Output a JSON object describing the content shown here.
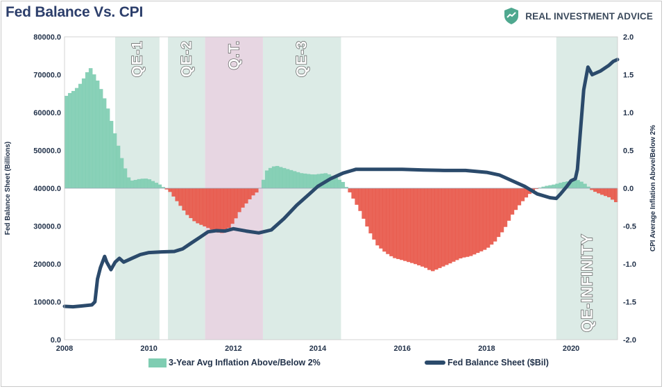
{
  "title": "Fed Balance Vs. CPI",
  "brand": {
    "name": "REAL INVESTMENT ADVICE",
    "logo_icon": "shield-logo-icon",
    "logo_color": "#4fa88f"
  },
  "colors": {
    "positive_area": "#7fcdb2",
    "negative_area": "#e8584a",
    "line": "#2b4a6b",
    "qe_band": "#dcebe6",
    "qt_band": "#e7d6e2"
  },
  "legend": {
    "area_label": "3-Year Avg Inflation Above/Below 2%",
    "line_label": "Fed Balance Sheet ($Bil)"
  },
  "chart_data": {
    "type": "area",
    "x_range": [
      2008,
      2021.1
    ],
    "x_ticks": [
      "2008",
      "2010",
      "2012",
      "2014",
      "2016",
      "2018",
      "2020"
    ],
    "y_left": {
      "label": "Fed Balance Sheet (Billions)",
      "range": [
        0,
        80000
      ],
      "ticks": [
        "0.0",
        "10000.0",
        "20000.0",
        "30000.0",
        "40000.0",
        "50000.0",
        "60000.0",
        "70000.0",
        "80000.0"
      ]
    },
    "y_right": {
      "label": "CPI Average Inflation Above/Below 2%",
      "range": [
        -2.0,
        2.0
      ],
      "ticks": [
        "-2.0",
        "-1.5",
        "-1.0",
        "-0.5",
        "0.0",
        "0.5",
        "1.0",
        "1.5",
        "2.0"
      ]
    },
    "bands": [
      {
        "label": "QE-1",
        "start": 2009.2,
        "end": 2010.25,
        "kind": "qe"
      },
      {
        "label": "QE-2",
        "start": 2010.45,
        "end": 2011.33,
        "kind": "qe"
      },
      {
        "label": "Q.T.",
        "start": 2011.33,
        "end": 2012.7,
        "kind": "qt"
      },
      {
        "label": "QE-3",
        "start": 2012.7,
        "end": 2014.55,
        "kind": "qe"
      },
      {
        "label": "QE-INFINITY",
        "start": 2019.65,
        "end": 2021.1,
        "kind": "qe"
      }
    ],
    "series": [
      {
        "name": "3-Year Avg Inflation Above/Below 2%",
        "axis": "right",
        "style": "stepped-area",
        "x": [
          2008.0,
          2008.1,
          2008.25,
          2008.4,
          2008.5,
          2008.6,
          2008.7,
          2008.8,
          2008.9,
          2009.0,
          2009.1,
          2009.2,
          2009.35,
          2009.5,
          2009.6,
          2009.75,
          2009.9,
          2010.0,
          2010.25,
          2010.5,
          2010.7,
          2010.9,
          2011.1,
          2011.3,
          2011.5,
          2011.7,
          2011.85,
          2012.0,
          2012.15,
          2012.3,
          2012.45,
          2012.6,
          2012.7,
          2012.8,
          2013.0,
          2013.3,
          2013.6,
          2013.9,
          2014.2,
          2014.4,
          2014.6,
          2014.75,
          2015.0,
          2015.2,
          2015.4,
          2015.6,
          2015.8,
          2016.0,
          2016.3,
          2016.55,
          2016.7,
          2016.9,
          2017.1,
          2017.4,
          2017.6,
          2017.8,
          2018.0,
          2018.2,
          2018.4,
          2018.6,
          2018.8,
          2019.0,
          2019.2,
          2019.4,
          2019.6,
          2019.8,
          2020.0,
          2020.1,
          2020.2,
          2020.35,
          2020.5,
          2020.7,
          2020.9,
          2021.1
        ],
        "y": [
          1.2,
          1.25,
          1.3,
          1.4,
          1.5,
          1.6,
          1.5,
          1.4,
          1.25,
          1.1,
          0.9,
          0.7,
          0.4,
          0.15,
          0.1,
          0.12,
          0.13,
          0.12,
          0.05,
          -0.05,
          -0.2,
          -0.35,
          -0.45,
          -0.5,
          -0.55,
          -0.6,
          -0.55,
          -0.45,
          -0.3,
          -0.2,
          -0.1,
          -0.03,
          0.1,
          0.25,
          0.3,
          0.25,
          0.2,
          0.18,
          0.2,
          0.15,
          0.08,
          -0.05,
          -0.3,
          -0.55,
          -0.75,
          -0.85,
          -0.92,
          -0.95,
          -1.0,
          -1.05,
          -1.1,
          -1.05,
          -1.0,
          -0.92,
          -0.9,
          -0.85,
          -0.8,
          -0.7,
          -0.55,
          -0.35,
          -0.2,
          -0.08,
          0.0,
          0.03,
          0.05,
          0.08,
          0.1,
          0.12,
          0.1,
          0.05,
          -0.03,
          -0.08,
          -0.12,
          -0.2
        ]
      },
      {
        "name": "Fed Balance Sheet ($Bil)",
        "axis": "left",
        "style": "line",
        "x": [
          2008.0,
          2008.2,
          2008.4,
          2008.65,
          2008.72,
          2008.78,
          2008.85,
          2008.95,
          2009.0,
          2009.1,
          2009.2,
          2009.3,
          2009.4,
          2009.6,
          2009.8,
          2010.0,
          2010.3,
          2010.6,
          2010.8,
          2011.0,
          2011.2,
          2011.4,
          2011.6,
          2011.8,
          2012.0,
          2012.3,
          2012.6,
          2012.9,
          2013.2,
          2013.5,
          2013.8,
          2014.0,
          2014.3,
          2014.6,
          2014.9,
          2015.0,
          2015.5,
          2016.0,
          2016.5,
          2017.0,
          2017.5,
          2018.0,
          2018.3,
          2018.6,
          2018.9,
          2019.2,
          2019.5,
          2019.65,
          2019.75,
          2019.9,
          2020.0,
          2020.1,
          2020.15,
          2020.2,
          2020.3,
          2020.4,
          2020.5,
          2020.7,
          2020.9,
          2021.0,
          2021.1
        ],
        "y": [
          8800,
          8700,
          8900,
          9200,
          10000,
          16000,
          19000,
          22000,
          20500,
          18500,
          20500,
          21500,
          20500,
          21500,
          22500,
          23000,
          23200,
          23300,
          24000,
          25500,
          27000,
          28500,
          28800,
          28700,
          29300,
          28700,
          28200,
          29000,
          32000,
          35500,
          38500,
          40500,
          42500,
          44000,
          45000,
          45000,
          45000,
          45000,
          44800,
          44700,
          44700,
          44200,
          43500,
          42000,
          40500,
          38500,
          37500,
          37300,
          38500,
          40500,
          42000,
          42500,
          45000,
          52000,
          66000,
          72000,
          70000,
          71000,
          72500,
          73500,
          74000
        ]
      }
    ]
  }
}
